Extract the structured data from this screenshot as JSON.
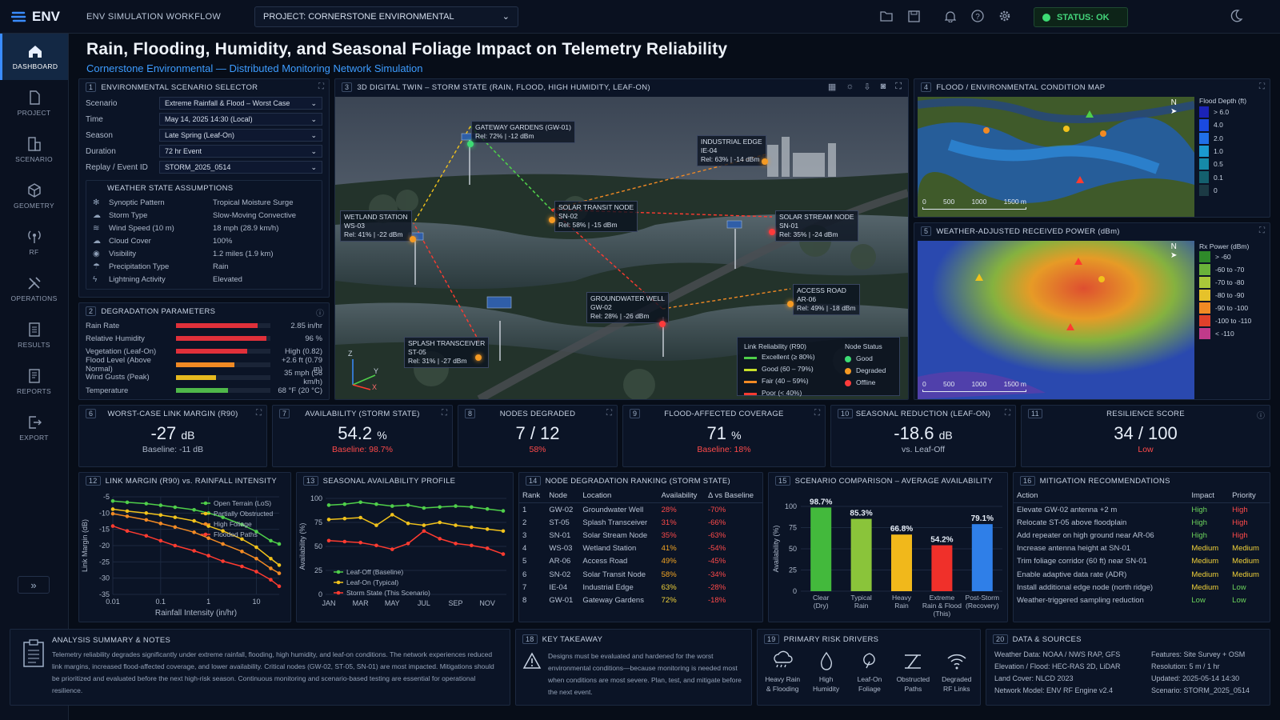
{
  "app": {
    "logo": "ENV",
    "workflow": "ENV SIMULATION WORKFLOW",
    "project_label": "PROJECT:  CORNERSTONE ENVIRONMENTAL",
    "status": "STATUS: OK"
  },
  "colors": {
    "accent": "#3a8cff",
    "good": "#3ddc74",
    "degraded": "#f59a23",
    "offline": "#ff3b3b",
    "bg": "#070d18"
  },
  "sidebar": [
    {
      "label": "DASHBOARD",
      "icon": "home-icon"
    },
    {
      "label": "PROJECT",
      "icon": "document-icon"
    },
    {
      "label": "SCENARIO",
      "icon": "scenario-icon"
    },
    {
      "label": "GEOMETRY",
      "icon": "cube-icon"
    },
    {
      "label": "RF",
      "icon": "antenna-icon"
    },
    {
      "label": "OPERATIONS",
      "icon": "tools-icon"
    },
    {
      "label": "RESULTS",
      "icon": "results-icon"
    },
    {
      "label": "REPORTS",
      "icon": "report-icon"
    },
    {
      "label": "EXPORT",
      "icon": "export-icon"
    }
  ],
  "title": "Rain, Flooding, Humidity, and Seasonal Foliage Impact on Telemetry Reliability",
  "subtitle": "Cornerstone Environmental — Distributed Monitoring Network Simulation",
  "p1": {
    "num": "1",
    "title": "ENVIRONMENTAL SCENARIO SELECTOR",
    "rows": [
      {
        "label": "Scenario",
        "value": "Extreme Rainfall & Flood – Worst Case"
      },
      {
        "label": "Time",
        "value": "May 14, 2025  14:30 (Local)"
      },
      {
        "label": "Season",
        "value": "Late Spring (Leaf-On)"
      },
      {
        "label": "Duration",
        "value": "72 hr Event"
      },
      {
        "label": "Replay / Event ID",
        "value": "STORM_2025_0514"
      }
    ],
    "wx_title": "WEATHER STATE ASSUMPTIONS",
    "wx": [
      {
        "icon": "✻",
        "k": "Synoptic Pattern",
        "v": "Tropical Moisture Surge"
      },
      {
        "icon": "☁",
        "k": "Storm Type",
        "v": "Slow-Moving Convective"
      },
      {
        "icon": "≋",
        "k": "Wind Speed (10 m)",
        "v": "18 mph  (28.9 km/h)"
      },
      {
        "icon": "☁",
        "k": "Cloud Cover",
        "v": "100%"
      },
      {
        "icon": "◉",
        "k": "Visibility",
        "v": "1.2 miles  (1.9 km)"
      },
      {
        "icon": "☂",
        "k": "Precipitation Type",
        "v": "Rain"
      },
      {
        "icon": "ϟ",
        "k": "Lightning Activity",
        "v": "Elevated"
      }
    ]
  },
  "p2": {
    "num": "2",
    "title": "DEGRADATION PARAMETERS",
    "rows": [
      {
        "k": "Rain Rate",
        "v": "2.85 in/hr",
        "fill": 0.86,
        "color": "#e0303a"
      },
      {
        "k": "Relative Humidity",
        "v": "96 %",
        "fill": 0.96,
        "color": "#e0303a"
      },
      {
        "k": "Vegetation (Leaf-On)",
        "v": "High (0.82)",
        "fill": 0.75,
        "color": "#e0303a"
      },
      {
        "k": "Flood Level (Above Normal)",
        "v": "+2.6 ft  (0.79 m)",
        "fill": 0.62,
        "color": "#f08a24"
      },
      {
        "k": "Wind Gusts (Peak)",
        "v": "35 mph  (56 km/h)",
        "fill": 0.42,
        "color": "#e6b91f"
      },
      {
        "k": "Temperature",
        "v": "68 °F  (20 °C)",
        "fill": 0.55,
        "color": "#4fb84a"
      }
    ]
  },
  "p3": {
    "num": "3",
    "title": "3D DIGITAL TWIN – STORM STATE (RAIN, FLOOD, HIGH HUMIDITY, LEAF-ON)",
    "nodes": [
      {
        "name": "GATEWAY GARDENS (GW-01)",
        "rel": "Rel: 72%  |  -12 dBm",
        "status": "good"
      },
      {
        "name": "INDUSTRIAL EDGE",
        "id": "IE-04",
        "rel": "Rel: 63%  |  -14 dBm",
        "status": "degraded"
      },
      {
        "name": "SOLAR TRANSIT NODE",
        "id": "SN-02",
        "rel": "Rel: 58%  |  -15 dBm",
        "status": "degraded"
      },
      {
        "name": "WETLAND STATION",
        "id": "WS-03",
        "rel": "Rel: 41%  |  -22 dBm",
        "status": "degraded"
      },
      {
        "name": "SOLAR STREAM NODE",
        "id": "SN-01",
        "rel": "Rel: 35%  |  -24 dBm",
        "status": "offline"
      },
      {
        "name": "GROUNDWATER WELL",
        "id": "GW-02",
        "rel": "Rel: 28%  |  -26 dBm",
        "status": "offline"
      },
      {
        "name": "ACCESS ROAD",
        "id": "AR-06",
        "rel": "Rel: 49%  |  -18 dBm",
        "status": "degraded"
      },
      {
        "name": "SPLASH TRANSCEIVER",
        "id": "ST-05",
        "rel": "Rel: 31%  |  -27 dBm",
        "status": "degraded"
      }
    ],
    "legend_title": "Link Reliability (R90)",
    "legend": [
      "Excellent (≥ 80%)",
      "Good (60 – 79%)",
      "Fair (40 – 59%)",
      "Poor (< 40%)"
    ],
    "status_title": "Node Status",
    "status": [
      "Good",
      "Degraded",
      "Offline"
    ],
    "axes": {
      "z": "Z",
      "y": "Y",
      "x": "X"
    }
  },
  "p4": {
    "num": "4",
    "title": "FLOOD / ENVIRONMENTAL CONDITION MAP",
    "legend_title": "Flood Depth (ft)",
    "legend": [
      "> 6.0",
      "4.0",
      "2.0",
      "1.0",
      "0.5",
      "0.1",
      "0"
    ],
    "scale": [
      "0",
      "500",
      "1000",
      "1500 m"
    ],
    "north": "N"
  },
  "p5": {
    "num": "5",
    "title": "WEATHER-ADJUSTED RECEIVED POWER (dBm)",
    "legend_title": "Rx Power (dBm)",
    "legend": [
      "> -60",
      "-60 to -70",
      "-70 to -80",
      "-80 to -90",
      "-90 to -100",
      "-100 to -110",
      "< -110"
    ],
    "scale": [
      "0",
      "500",
      "1000",
      "1500 m"
    ],
    "north": "N"
  },
  "kpis": [
    {
      "num": "6",
      "title": "WORST-CASE LINK MARGIN (R90)",
      "value": "-27",
      "unit": "dB",
      "sub": "Baseline: -11 dB",
      "subcolor": "#aeb9cb"
    },
    {
      "num": "7",
      "title": "AVAILABILITY (STORM STATE)",
      "value": "54.2",
      "unit": "%",
      "sub": "Baseline: 98.7%",
      "subcolor": "#ff4a4a"
    },
    {
      "num": "8",
      "title": "NODES DEGRADED",
      "value": "7 / 12",
      "unit": "",
      "sub": "58%",
      "subcolor": "#ff4a4a"
    },
    {
      "num": "9",
      "title": "FLOOD-AFFECTED COVERAGE",
      "value": "71",
      "unit": "%",
      "sub": "Baseline: 18%",
      "subcolor": "#ff4a4a"
    },
    {
      "num": "10",
      "title": "SEASONAL REDUCTION (LEAF-ON)",
      "value": "-18.6",
      "unit": "dB",
      "sub": "vs. Leaf-Off",
      "subcolor": "#aeb9cb"
    },
    {
      "num": "11",
      "title": "RESILIENCE SCORE",
      "value": "34 / 100",
      "unit": "",
      "sub": "Low",
      "subcolor": "#ff4a4a"
    }
  ],
  "p12": {
    "num": "12",
    "title": "LINK MARGIN (R90) vs. RAINFALL INTENSITY"
  },
  "p13": {
    "num": "13",
    "title": "SEASONAL AVAILABILITY PROFILE"
  },
  "p14": {
    "num": "14",
    "title": "NODE DEGRADATION RANKING (STORM STATE)",
    "headers": [
      "Rank",
      "Node",
      "Location",
      "Availability",
      "Δ vs Baseline"
    ],
    "rows": [
      [
        "1",
        "GW-02",
        "Groundwater Well",
        "28%",
        "-70%"
      ],
      [
        "2",
        "ST-05",
        "Splash Transceiver",
        "31%",
        "-66%"
      ],
      [
        "3",
        "SN-01",
        "Solar Stream Node",
        "35%",
        "-63%"
      ],
      [
        "4",
        "WS-03",
        "Wetland Station",
        "41%",
        "-54%"
      ],
      [
        "5",
        "AR-06",
        "Access Road",
        "49%",
        "-45%"
      ],
      [
        "6",
        "SN-02",
        "Solar Transit Node",
        "58%",
        "-34%"
      ],
      [
        "7",
        "IE-04",
        "Industrial Edge",
        "63%",
        "-28%"
      ],
      [
        "8",
        "GW-01",
        "Gateway Gardens",
        "72%",
        "-18%"
      ]
    ]
  },
  "p15": {
    "num": "15",
    "title": "SCENARIO COMPARISON – AVERAGE AVAILABILITY"
  },
  "p16": {
    "num": "16",
    "title": "MITIGATION RECOMMENDATIONS",
    "headers": [
      "Action",
      "Impact",
      "Priority"
    ],
    "rows": [
      [
        "Elevate GW-02 antenna +2 m",
        "High",
        "High"
      ],
      [
        "Relocate ST-05 above floodplain",
        "High",
        "High"
      ],
      [
        "Add repeater on high ground near AR-06",
        "High",
        "High"
      ],
      [
        "Increase antenna height at SN-01",
        "Medium",
        "Medium"
      ],
      [
        "Trim foliage corridor (60 ft) near SN-01",
        "Medium",
        "Medium"
      ],
      [
        "Enable adaptive data rate (ADR)",
        "Medium",
        "Medium"
      ],
      [
        "Install additional edge node (north ridge)",
        "Medium",
        "Low"
      ],
      [
        "Weather-triggered sampling reduction",
        "Low",
        "Low"
      ]
    ]
  },
  "p17": {
    "title": "ANALYSIS SUMMARY & NOTES",
    "text": "Telemetry reliability degrades significantly under extreme rainfall, flooding, high humidity, and leaf-on conditions. The network experiences reduced link margins, increased flood-affected coverage, and lower availability. Critical nodes (GW-02, ST-05, SN-01) are most impacted. Mitigations should be prioritized and evaluated before the next high-risk season. Continuous monitoring and scenario-based testing are essential for operational resilience."
  },
  "p18": {
    "num": "18",
    "title": "KEY TAKEAWAY",
    "text": "Designs must be evaluated and hardened for the worst environmental conditions—because monitoring is needed most when conditions are most severe. Plan, test, and mitigate before the next event."
  },
  "p19": {
    "num": "19",
    "title": "PRIMARY RISK DRIVERS",
    "items": [
      {
        "l1": "Heavy Rain",
        "l2": "& Flooding",
        "icon": "cloud-rain-icon"
      },
      {
        "l1": "High",
        "l2": "Humidity",
        "icon": "droplet-icon"
      },
      {
        "l1": "Leaf-On",
        "l2": "Foliage",
        "icon": "leaf-icon"
      },
      {
        "l1": "Obstructed",
        "l2": "Paths",
        "icon": "obstructed-path-icon"
      },
      {
        "l1": "Degraded",
        "l2": "RF Links",
        "icon": "wifi-icon"
      }
    ]
  },
  "p20": {
    "num": "20",
    "title": "DATA & SOURCES",
    "left": [
      "Weather Data: NOAA / NWS RAP, GFS",
      "Elevation / Flood: HEC-RAS 2D, LiDAR",
      "Land Cover:  NLCD 2023",
      "Network Model: ENV RF Engine v2.4"
    ],
    "right": [
      "Features:  Site Survey + OSM",
      "Resolution:  5 m / 1 hr",
      "Updated:  2025-05-14 14:30",
      "Scenario:  STORM_2025_0514"
    ]
  },
  "chart_data": [
    {
      "type": "line",
      "x": [
        0.01,
        0.02,
        0.05,
        0.1,
        0.2,
        0.5,
        1,
        2,
        5,
        10,
        20,
        30
      ],
      "xlabel": "Rainfall Intensity (in/hr)",
      "ylabel": "Link Margin (dB)",
      "xscale": "log",
      "xticks": [
        "0.01",
        "0.1",
        "1",
        "10"
      ],
      "ylim": [
        -35,
        -5
      ],
      "yticks": [
        "-5",
        "-10",
        "-15",
        "-20",
        "-25",
        "-30",
        "-35"
      ],
      "series": [
        {
          "name": "Open Terrain (LoS)",
          "color": "#4fcf4a",
          "values": [
            -6.3,
            -6.7,
            -7.1,
            -7.6,
            -8.2,
            -9.0,
            -10.0,
            -11.3,
            -13.5,
            -15.7,
            -18.5,
            -19.5
          ]
        },
        {
          "name": "Partially Obstructed",
          "color": "#f1c21b",
          "values": [
            -8.8,
            -9.4,
            -10.0,
            -10.6,
            -11.3,
            -12.4,
            -14.0,
            -15.5,
            -18.0,
            -20.5,
            -24.0,
            -26.0
          ]
        },
        {
          "name": "High Foliage",
          "color": "#f28a24",
          "values": [
            -10.2,
            -11.0,
            -12.1,
            -13.2,
            -14.3,
            -15.9,
            -17.7,
            -19.5,
            -21.8,
            -24.0,
            -27.0,
            -28.5
          ]
        },
        {
          "name": "Flooded Paths",
          "color": "#ff3b30",
          "values": [
            -14.0,
            -15.5,
            -17.0,
            -18.5,
            -20.0,
            -21.6,
            -23.1,
            -24.8,
            -26.4,
            -28.0,
            -30.5,
            -32.5
          ]
        }
      ]
    },
    {
      "type": "line",
      "x": [
        "JAN",
        "FEB",
        "MAR",
        "APR",
        "MAY",
        "JUN",
        "JUL",
        "AUG",
        "SEP",
        "OCT",
        "NOV",
        "DEC"
      ],
      "xticks": [
        "JAN",
        "MAR",
        "MAY",
        "JUL",
        "SEP",
        "NOV"
      ],
      "ylabel": "Availability (%)",
      "ylim": [
        0,
        100
      ],
      "yticks": [
        "100",
        "75",
        "50",
        "25",
        "0"
      ],
      "series": [
        {
          "name": "Leaf-Off (Baseline)",
          "color": "#4fcf4a",
          "values": [
            93,
            94,
            96,
            94,
            92,
            93,
            90,
            91,
            92,
            91,
            89,
            87
          ]
        },
        {
          "name": "Leaf-On (Typical)",
          "color": "#f1c21b",
          "values": [
            78,
            79,
            80,
            72,
            83,
            74,
            72,
            75,
            72,
            70,
            68,
            66
          ]
        },
        {
          "name": "Storm State (This Scenario)",
          "color": "#ff3b30",
          "values": [
            56,
            55,
            54,
            51,
            47,
            53,
            66,
            58,
            53,
            51,
            48,
            42
          ]
        }
      ]
    },
    {
      "type": "bar",
      "categories": [
        "Clear (Dry)",
        "Typical Rain",
        "Heavy Rain",
        "Extreme Rain & Flood (This)",
        "Post-Storm (Recovery)"
      ],
      "values": [
        98.7,
        85.3,
        66.8,
        54.2,
        79.1
      ],
      "labels": [
        "98.7%",
        "85.3%",
        "66.8%",
        "54.2%",
        "79.1%"
      ],
      "colors": [
        "#43b93c",
        "#8ac43a",
        "#f1b81b",
        "#f0302a",
        "#2f7fe8"
      ],
      "ylabel": "Availability (%)",
      "ylim": [
        0,
        100
      ],
      "yticks": [
        "100",
        "75",
        "50",
        "25",
        "0"
      ]
    }
  ]
}
